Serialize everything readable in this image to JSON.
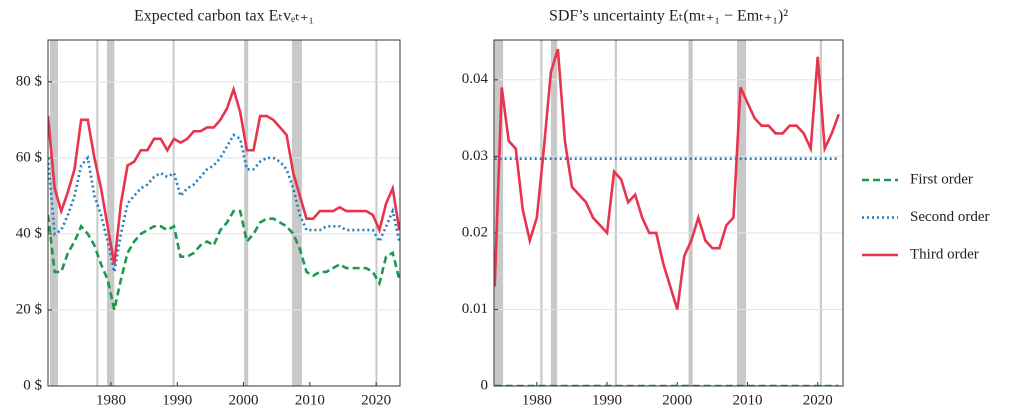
{
  "chart_data": [
    {
      "type": "line",
      "title": "Expected carbon tax Eₜvₑₜ₊₁",
      "x": [
        1970.5,
        1971.5,
        1972.5,
        1973.5,
        1974.5,
        1975.5,
        1976.5,
        1977.5,
        1978.5,
        1979.5,
        1980.5,
        1981.5,
        1982.5,
        1983.5,
        1984.5,
        1985.5,
        1986.5,
        1987.5,
        1988.5,
        1989.5,
        1990.5,
        1991.5,
        1992.5,
        1993.5,
        1994.5,
        1995.5,
        1996.5,
        1997.5,
        1998.5,
        1999.5,
        2000.5,
        2001.5,
        2002.5,
        2003.5,
        2004.5,
        2005.5,
        2006.5,
        2007.5,
        2008.5,
        2009.5,
        2010.5,
        2011.5,
        2012.5,
        2013.5,
        2014.5,
        2015.5,
        2016.5,
        2017.5,
        2018.5,
        2019.5,
        2020.5,
        2021.5,
        2022.5,
        2023.5
      ],
      "series": [
        {
          "color": "#1a9a50",
          "dash": "dashed",
          "values": [
            45,
            30,
            30,
            35,
            38,
            42,
            40,
            37,
            32,
            28,
            20,
            28,
            35,
            38,
            40,
            41,
            42,
            42,
            41,
            42,
            34,
            34,
            35,
            37,
            38,
            37,
            41,
            43,
            46,
            46,
            38,
            40,
            43,
            44,
            44,
            43,
            42,
            40,
            36,
            30,
            29,
            30,
            30,
            31,
            32,
            31,
            31,
            31,
            31,
            30,
            27,
            34,
            35,
            28
          ]
        },
        {
          "color": "#1f7fbf",
          "dash": "dotted",
          "values": [
            60,
            40,
            41,
            45,
            50,
            58,
            60,
            50,
            45,
            38,
            30,
            40,
            48,
            50,
            52,
            53,
            55,
            56,
            55,
            56,
            50,
            52,
            53,
            55,
            57,
            58,
            60,
            63,
            66,
            65,
            57,
            57,
            59,
            60,
            60,
            59,
            57,
            52,
            45,
            41,
            41,
            41,
            42,
            42,
            42,
            41,
            41,
            41,
            41,
            41,
            38,
            42,
            46,
            38
          ]
        },
        {
          "color": "#e8344e",
          "dash": "solid",
          "values": [
            71,
            52,
            46,
            51,
            57,
            70,
            70,
            60,
            52,
            42,
            32,
            48,
            58,
            59,
            62,
            62,
            65,
            65,
            62,
            65,
            64,
            65,
            67,
            67,
            68,
            68,
            70,
            73,
            78,
            72,
            62,
            62,
            71,
            71,
            70,
            68,
            66,
            56,
            50,
            44,
            44,
            46,
            46,
            46,
            47,
            46,
            46,
            46,
            46,
            45,
            41,
            48,
            52,
            41
          ]
        }
      ],
      "xlim": [
        1970.5,
        2023.6
      ],
      "xticks": [
        1980,
        1990,
        2000,
        2010,
        2020
      ],
      "ylim": [
        0,
        91
      ],
      "yticks": [
        {
          "value": 0,
          "label": "0 $"
        },
        {
          "value": 20,
          "label": "20 $"
        },
        {
          "value": 40,
          "label": "40 $"
        },
        {
          "value": 60,
          "label": "60 $"
        },
        {
          "value": 80,
          "label": "80 $"
        }
      ],
      "grid": true,
      "recessions": [
        [
          1970.8,
          1972.0
        ],
        [
          1977.8,
          1978.1
        ],
        [
          1979.4,
          1980.5
        ],
        [
          1989.3,
          1989.6
        ],
        [
          2000.1,
          2000.7
        ],
        [
          2007.3,
          2008.8
        ],
        [
          2019.9,
          2020.2
        ]
      ]
    },
    {
      "type": "line",
      "title": "SDF’s uncertainty Eₜ(mₜ₊₁ − Emₜ₊₁)²",
      "x": [
        1974,
        1975,
        1976,
        1977,
        1978,
        1979,
        1980,
        1981,
        1982,
        1983,
        1984,
        1985,
        1986,
        1987,
        1988,
        1989,
        1990,
        1991,
        1992,
        1993,
        1994,
        1995,
        1996,
        1997,
        1998,
        1999,
        2000,
        2001,
        2002,
        2003,
        2004,
        2005,
        2006,
        2007,
        2008,
        2009,
        2010,
        2011,
        2012,
        2013,
        2014,
        2015,
        2016,
        2017,
        2018,
        2019,
        2020,
        2021,
        2022,
        2023
      ],
      "series": [
        {
          "name": "First order",
          "color": "#1a9a50",
          "dash": "dashed",
          "values": [
            0,
            0,
            0,
            0,
            0,
            0,
            0,
            0,
            0,
            0,
            0,
            0,
            0,
            0,
            0,
            0,
            0,
            0,
            0,
            0,
            0,
            0,
            0,
            0,
            0,
            0,
            0,
            0,
            0,
            0,
            0,
            0,
            0,
            0,
            0,
            0,
            0,
            0,
            0,
            0,
            0,
            0,
            0,
            0,
            0,
            0,
            0,
            0,
            0,
            0
          ]
        },
        {
          "name": "Second order",
          "color": "#1f7fbf",
          "dash": "dotted",
          "values": [
            0.0297,
            0.0297,
            0.0297,
            0.0297,
            0.0297,
            0.0297,
            0.0297,
            0.0297,
            0.0297,
            0.0297,
            0.0297,
            0.0297,
            0.0297,
            0.0297,
            0.0297,
            0.0297,
            0.0297,
            0.0297,
            0.0297,
            0.0297,
            0.0297,
            0.0297,
            0.0297,
            0.0297,
            0.0297,
            0.0297,
            0.0297,
            0.0297,
            0.0297,
            0.0297,
            0.0297,
            0.0297,
            0.0297,
            0.0297,
            0.0297,
            0.0297,
            0.0297,
            0.0297,
            0.0297,
            0.0297,
            0.0297,
            0.0297,
            0.0297,
            0.0297,
            0.0297,
            0.0297,
            0.0297,
            0.0297,
            0.0297,
            0.0297
          ]
        },
        {
          "name": "Third order",
          "color": "#e8344e",
          "dash": "solid",
          "values": [
            0.013,
            0.039,
            0.032,
            0.031,
            0.023,
            0.019,
            0.022,
            0.031,
            0.041,
            0.044,
            0.032,
            0.026,
            0.025,
            0.024,
            0.022,
            0.021,
            0.02,
            0.028,
            0.027,
            0.024,
            0.025,
            0.022,
            0.02,
            0.02,
            0.016,
            0.013,
            0.01,
            0.017,
            0.019,
            0.022,
            0.019,
            0.018,
            0.018,
            0.021,
            0.022,
            0.039,
            0.037,
            0.035,
            0.034,
            0.034,
            0.033,
            0.033,
            0.034,
            0.034,
            0.033,
            0.031,
            0.043,
            0.031,
            0.033,
            0.0355
          ]
        }
      ],
      "xlim": [
        1973.9,
        2023.6
      ],
      "xticks": [
        1980,
        1990,
        2000,
        2010,
        2020
      ],
      "ylim": [
        0,
        0.0452
      ],
      "yticks": [
        0,
        0.01,
        0.02,
        0.03,
        0.04
      ],
      "grid": true,
      "legend": "right",
      "recessions": [
        [
          1974.0,
          1975.2
        ],
        [
          1980.5,
          1980.8
        ],
        [
          1982.0,
          1982.9
        ],
        [
          1991.1,
          1991.4
        ],
        [
          2001.6,
          2002.2
        ],
        [
          2008.5,
          2009.8
        ],
        [
          2020.3,
          2020.6
        ]
      ]
    }
  ]
}
